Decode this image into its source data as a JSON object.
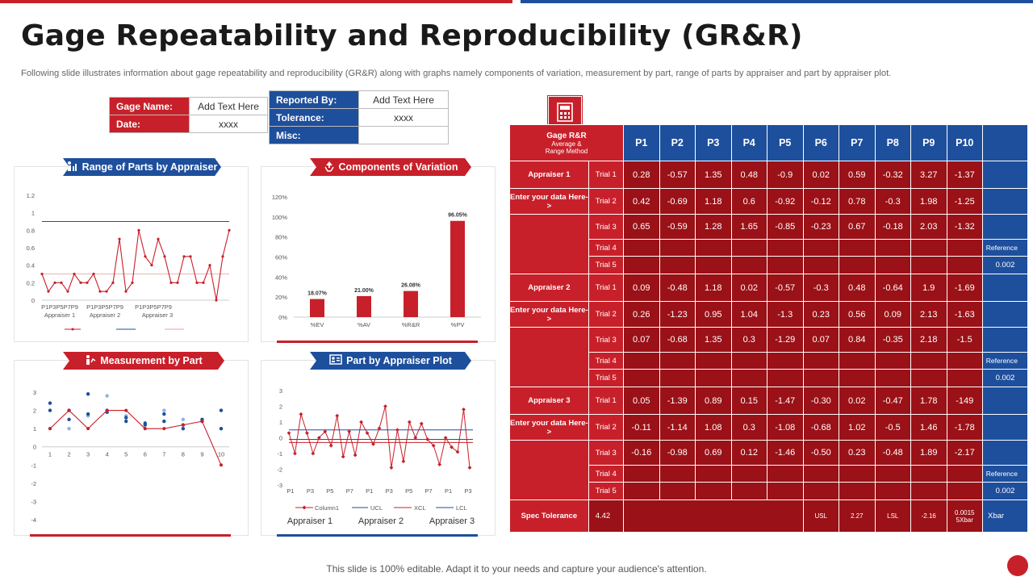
{
  "header": {
    "title": "Gage Repeatability and Reproducibility (GR&R)",
    "subtitle": "Following slide illustrates information about gage repeatability and reproducibility (GR&R) along with graphs namely components of variation, measurement by part, range of parts by appraiser and part by appraiser plot."
  },
  "info_left": {
    "gage_name_label": "Gage Name:",
    "gage_name_value": "Add Text Here",
    "date_label": "Date:",
    "date_value": "xxxx"
  },
  "info_right": {
    "reported_by_label": "Reported By:",
    "reported_by_value": "Add Text Here",
    "tolerance_label": "Tolerance:",
    "tolerance_value": "xxxx",
    "misc_label": "Misc:",
    "misc_value": ""
  },
  "colors": {
    "red": "#c8202a",
    "blue": "#1e4f9c",
    "dark_red": "#9a1117"
  },
  "icons": [
    "team-chart-icon",
    "recycle-icon",
    "people-chart-icon",
    "id-card-icon",
    "calculator-icon"
  ],
  "panels": {
    "range": {
      "title": "Range of Parts by Appraiser",
      "x_groups": [
        "P1P3P5P7P9",
        "P1P3P5P7P9",
        "P1P3P5P7P9"
      ],
      "x_group_labels": [
        "Appraiser  1",
        "Appraiser  2",
        "Appraiser  3"
      ]
    },
    "components": {
      "title": "Components of Variation"
    },
    "measurement": {
      "title": "Measurement by Part"
    },
    "part_by_appraiser": {
      "title": "Part by Appraiser Plot",
      "legend": [
        "Column1",
        "UCL",
        "XCL",
        "LCL"
      ],
      "appraiser_labels": [
        "Appraiser 1",
        "Appraiser 2",
        "Appraiser 3"
      ]
    }
  },
  "chart_data": [
    {
      "type": "line",
      "title": "Range of Parts by Appraiser",
      "ylim": [
        0,
        1.2
      ],
      "yticks": [
        "0",
        "0.2",
        "0.4",
        "0.6",
        "0.8",
        "1",
        "1.2"
      ],
      "series": [
        {
          "values": [
            0.3,
            0.1,
            0.2,
            0.2,
            0.1,
            0.3,
            0.2,
            0.2,
            0.3,
            0.1,
            0.1,
            0.2,
            0.7,
            0.1,
            0.2,
            0.8,
            0.5,
            0.4,
            0.7,
            0.5,
            0.2,
            0.2,
            0.5,
            0.5,
            0.2,
            0.2,
            0.4,
            0.0,
            0.5,
            0.8
          ]
        },
        {
          "values": [
            0.9,
            0.9
          ]
        },
        {
          "values": [
            0.3,
            0.3
          ]
        }
      ]
    },
    {
      "type": "bar",
      "title": "Components of Variation",
      "categories": [
        "%EV",
        "%AV",
        "%R&R",
        "%PV"
      ],
      "values": [
        18.07,
        21.0,
        26.08,
        96.05
      ],
      "data_labels": [
        "18.07%",
        "21.00%",
        "26.08%",
        "96.05%"
      ],
      "ylim": [
        0,
        120
      ],
      "yticks": [
        "0%",
        "20%",
        "40%",
        "60%",
        "80%",
        "100%",
        "120%"
      ]
    },
    {
      "type": "scatter",
      "title": "Measurement by Part",
      "ylim": [
        -4,
        3
      ],
      "yticks": [
        "3",
        "2",
        "1",
        "0",
        "-1",
        "-2",
        "-3",
        "-4"
      ],
      "categories": [
        "1",
        "2",
        "3",
        "4",
        "5",
        "6",
        "7",
        "8",
        "9",
        "10"
      ],
      "series": [
        {
          "name": "",
          "values": [
            1.0,
            2.0,
            1.0,
            2.0,
            2.0,
            1.0,
            1.0,
            1.2,
            1.4,
            -1.0
          ]
        },
        {
          "name": "",
          "values": [
            2.4,
            1.5,
            2.9,
            2.0,
            1.4,
            1.3,
            1.8,
            1.2,
            1.4,
            2.0
          ]
        },
        {
          "name": "",
          "values": [
            1.0,
            1.0,
            1.7,
            2.8,
            1.7,
            1.0,
            2.0,
            1.5,
            1.4,
            1.0
          ]
        },
        {
          "name": "",
          "values": [
            2.0,
            2.0,
            1.8,
            1.9,
            1.6,
            1.2,
            1.4,
            1.0,
            1.5,
            1.0
          ]
        }
      ]
    },
    {
      "type": "line",
      "title": "Part by Appraiser Plot",
      "ylim": [
        -3,
        3
      ],
      "yticks": [
        "3",
        "2",
        "1",
        "0",
        "-1",
        "-2",
        "-3"
      ],
      "x_ticks": [
        "P1",
        "P3",
        "P5",
        "P7",
        "P1",
        "P3",
        "P5",
        "P7",
        "P1",
        "P3"
      ],
      "series": [
        {
          "name": "Column1",
          "values": [
            0.3,
            -1.0,
            1.5,
            0.3,
            -1.0,
            0.0,
            0.4,
            -0.5,
            1.4,
            -1.2,
            0.4,
            -1.1,
            1.0,
            0.3,
            -0.4,
            0.6,
            2.0,
            -1.9,
            0.5,
            -1.5,
            1.0,
            0.0,
            0.9,
            -0.1,
            -0.5,
            -1.7,
            0.0,
            -0.6,
            -0.9,
            1.8,
            -1.9
          ]
        },
        {
          "name": "UCL",
          "values": [
            0.5,
            0.5
          ]
        },
        {
          "name": "XCL",
          "values": [
            -0.3,
            -0.3
          ]
        },
        {
          "name": "LCL",
          "values": [
            -0.1,
            -0.1
          ]
        }
      ]
    }
  ],
  "grr_table": {
    "header_title": "Gage R&R",
    "header_sub1": "Average &",
    "header_sub2": "Range Method",
    "parts": [
      "P1",
      "P2",
      "P3",
      "P4",
      "P5",
      "P6",
      "P7",
      "P8",
      "P9",
      "P10"
    ],
    "enter_data": "Enter your data Here->",
    "reference_label": "Reference",
    "reference_value": "0.002",
    "appraisers": [
      {
        "name": "Appraiser 1",
        "trials": [
          {
            "label": "Trial 1",
            "values": [
              "0.28",
              "-0.57",
              "1.35",
              "0.48",
              "-0.9",
              "0.02",
              "0.59",
              "-0.32",
              "3.27",
              "-1.37"
            ]
          },
          {
            "label": "Trial 2",
            "values": [
              "0.42",
              "-0.69",
              "1.18",
              "0.6",
              "-0.92",
              "-0.12",
              "0.78",
              "-0.3",
              "1.98",
              "-1.25"
            ]
          },
          {
            "label": "Trial 3",
            "values": [
              "0.65",
              "-0.59",
              "1.28",
              "1.65",
              "-0.85",
              "-0.23",
              "0.67",
              "-0.18",
              "2.03",
              "-1.32"
            ]
          },
          {
            "label": "Trial 4",
            "values": []
          },
          {
            "label": "Trial 5",
            "values": []
          }
        ]
      },
      {
        "name": "Appraiser 2",
        "trials": [
          {
            "label": "Trial 1",
            "values": [
              "0.09",
              "-0.48",
              "1.18",
              "0.02",
              "-0.57",
              "-0.3",
              "0.48",
              "-0.64",
              "1.9",
              "-1.69"
            ]
          },
          {
            "label": "Trial 2",
            "values": [
              "0.26",
              "-1.23",
              "0.95",
              "1.04",
              "-1.3",
              "0.23",
              "0.56",
              "0.09",
              "2.13",
              "-1.63"
            ]
          },
          {
            "label": "Trial 3",
            "values": [
              "0.07",
              "-0.68",
              "1.35",
              "0.3",
              "-1.29",
              "0.07",
              "0.84",
              "-0.35",
              "2.18",
              "-1.5"
            ]
          },
          {
            "label": "Trial 4",
            "values": []
          },
          {
            "label": "Trial 5",
            "values": []
          }
        ]
      },
      {
        "name": "Appraiser 3",
        "trials": [
          {
            "label": "Trial 1",
            "values": [
              "0.05",
              "-1.39",
              "0.89",
              "0.15",
              "-1.47",
              "-0.30",
              "0.02",
              "-0.47",
              "1.78",
              "-149"
            ]
          },
          {
            "label": "Trial 2",
            "values": [
              "-0.11",
              "-1.14",
              "1.08",
              "0.3",
              "-1.08",
              "-0.68",
              "1.02",
              "-0.5",
              "1.46",
              "-1.78"
            ]
          },
          {
            "label": "Trial 3",
            "values": [
              "-0.16",
              "-0.98",
              "0.69",
              "0.12",
              "-1.46",
              "-0.50",
              "0.23",
              "-0.48",
              "1.89",
              "-2.17"
            ]
          },
          {
            "label": "Trial 4",
            "values": []
          },
          {
            "label": "Trial 5",
            "values": []
          }
        ]
      }
    ],
    "spec": {
      "label": "Spec Tolerance",
      "value": "4.42",
      "usl_label": "USL",
      "usl_value": "2.27",
      "lsl_label": "LSL",
      "lsl_value": "-2.16",
      "sxbar_value": "0.0015",
      "sxbar_label": "5Xbar",
      "xbar_label": "Xbar"
    }
  },
  "footer": {
    "text": "This slide is 100% editable. Adapt it to your needs and capture your audience's attention."
  }
}
